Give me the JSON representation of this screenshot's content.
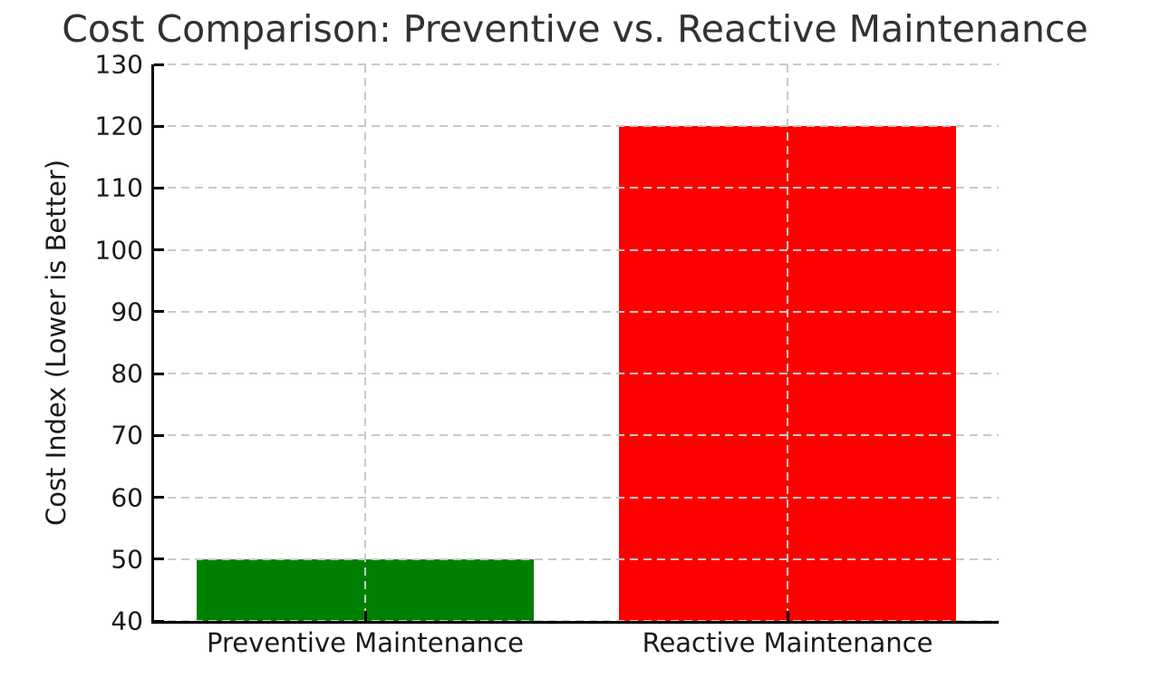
{
  "chart_data": {
    "type": "bar",
    "title": "Cost Comparison: Preventive vs. Reactive Maintenance",
    "xlabel": "",
    "ylabel": "Cost Index (Lower is Better)",
    "categories": [
      "Preventive Maintenance",
      "Reactive Maintenance"
    ],
    "values": [
      50,
      120
    ],
    "bar_colors": [
      "#008000",
      "#ff0000"
    ],
    "ylim": [
      40,
      130
    ],
    "yticks": [
      40,
      50,
      60,
      70,
      80,
      90,
      100,
      110,
      120,
      130
    ],
    "grid": "on",
    "grid_style": "dashed",
    "grid_color": "#c9c9c9",
    "bar_width_fraction": 0.8,
    "legend": "none",
    "spine_color": "#000000",
    "text_color": "#1a1a1a",
    "title_color": "#323232",
    "background_color": "#ffffff"
  }
}
